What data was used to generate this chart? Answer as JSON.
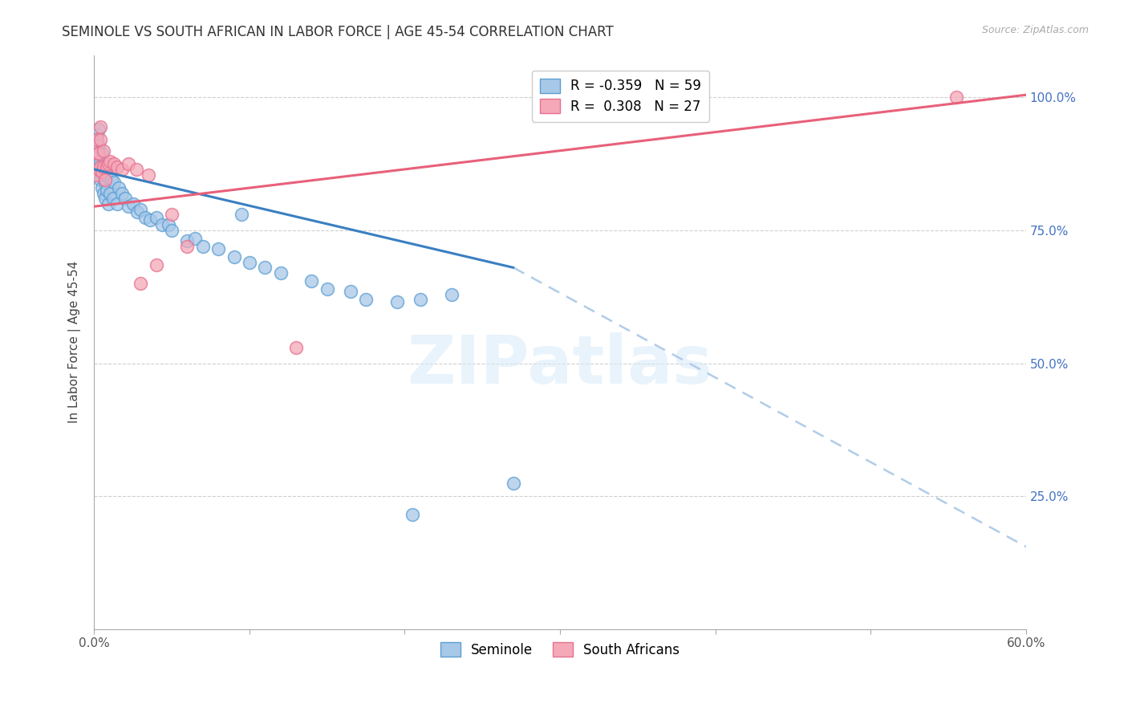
{
  "title": "SEMINOLE VS SOUTH AFRICAN IN LABOR FORCE | AGE 45-54 CORRELATION CHART",
  "source": "Source: ZipAtlas.com",
  "ylabel": "In Labor Force | Age 45-54",
  "xlim": [
    0.0,
    0.6
  ],
  "ylim": [
    0.0,
    1.08
  ],
  "legend_label1": "Seminole",
  "legend_label2": "South Africans",
  "R1": "-0.359",
  "N1": "59",
  "R2": "0.308",
  "N2": "27",
  "color_blue": "#a8c8e8",
  "color_pink": "#f4a8b8",
  "color_blue_edge": "#5a9fd4",
  "color_pink_edge": "#e87090",
  "color_blue_line": "#3a7fc1",
  "color_pink_line": "#e8607a",
  "color_dashed_line": "#b0cce8",
  "right_tick_color": "#4472c4",
  "blue_line_x0": 0.0,
  "blue_line_y0": 0.865,
  "blue_line_x1": 0.27,
  "blue_line_y1": 0.68,
  "dashed_line_x0": 0.27,
  "dashed_line_y0": 0.68,
  "dashed_line_x1": 0.6,
  "dashed_line_y1": 0.155,
  "pink_line_x0": 0.0,
  "pink_line_y0": 0.795,
  "pink_line_x1": 0.6,
  "pink_line_y1": 1.005,
  "seminole_points": [
    [
      0.001,
      0.87
    ],
    [
      0.001,
      0.875
    ],
    [
      0.002,
      0.86
    ],
    [
      0.002,
      0.89
    ],
    [
      0.002,
      0.93
    ],
    [
      0.003,
      0.855
    ],
    [
      0.003,
      0.88
    ],
    [
      0.003,
      0.91
    ],
    [
      0.003,
      0.94
    ],
    [
      0.004,
      0.845
    ],
    [
      0.004,
      0.87
    ],
    [
      0.004,
      0.88
    ],
    [
      0.005,
      0.83
    ],
    [
      0.005,
      0.865
    ],
    [
      0.005,
      0.895
    ],
    [
      0.006,
      0.82
    ],
    [
      0.006,
      0.855
    ],
    [
      0.006,
      0.875
    ],
    [
      0.007,
      0.81
    ],
    [
      0.007,
      0.84
    ],
    [
      0.008,
      0.825
    ],
    [
      0.008,
      0.855
    ],
    [
      0.009,
      0.8
    ],
    [
      0.01,
      0.82
    ],
    [
      0.011,
      0.845
    ],
    [
      0.012,
      0.81
    ],
    [
      0.013,
      0.84
    ],
    [
      0.015,
      0.8
    ],
    [
      0.016,
      0.83
    ],
    [
      0.018,
      0.82
    ],
    [
      0.02,
      0.81
    ],
    [
      0.022,
      0.795
    ],
    [
      0.025,
      0.8
    ],
    [
      0.028,
      0.785
    ],
    [
      0.03,
      0.79
    ],
    [
      0.033,
      0.775
    ],
    [
      0.036,
      0.77
    ],
    [
      0.04,
      0.775
    ],
    [
      0.044,
      0.76
    ],
    [
      0.048,
      0.76
    ],
    [
      0.05,
      0.75
    ],
    [
      0.06,
      0.73
    ],
    [
      0.065,
      0.735
    ],
    [
      0.07,
      0.72
    ],
    [
      0.08,
      0.715
    ],
    [
      0.09,
      0.7
    ],
    [
      0.1,
      0.69
    ],
    [
      0.11,
      0.68
    ],
    [
      0.12,
      0.67
    ],
    [
      0.14,
      0.655
    ],
    [
      0.15,
      0.64
    ],
    [
      0.165,
      0.635
    ],
    [
      0.175,
      0.62
    ],
    [
      0.195,
      0.615
    ],
    [
      0.21,
      0.62
    ],
    [
      0.23,
      0.63
    ],
    [
      0.095,
      0.78
    ],
    [
      0.27,
      0.275
    ],
    [
      0.205,
      0.215
    ]
  ],
  "southafrican_points": [
    [
      0.001,
      0.855
    ],
    [
      0.002,
      0.895
    ],
    [
      0.002,
      0.92
    ],
    [
      0.003,
      0.865
    ],
    [
      0.003,
      0.895
    ],
    [
      0.004,
      0.87
    ],
    [
      0.004,
      0.92
    ],
    [
      0.004,
      0.945
    ],
    [
      0.005,
      0.86
    ],
    [
      0.006,
      0.87
    ],
    [
      0.006,
      0.9
    ],
    [
      0.007,
      0.845
    ],
    [
      0.008,
      0.87
    ],
    [
      0.009,
      0.875
    ],
    [
      0.01,
      0.88
    ],
    [
      0.013,
      0.875
    ],
    [
      0.015,
      0.87
    ],
    [
      0.018,
      0.865
    ],
    [
      0.022,
      0.875
    ],
    [
      0.027,
      0.865
    ],
    [
      0.03,
      0.65
    ],
    [
      0.035,
      0.855
    ],
    [
      0.04,
      0.685
    ],
    [
      0.05,
      0.78
    ],
    [
      0.06,
      0.72
    ],
    [
      0.13,
      0.53
    ],
    [
      0.555,
      1.0
    ]
  ],
  "grid_color": "#d0d0d0",
  "title_fontsize": 12,
  "axis_label_fontsize": 11,
  "tick_fontsize": 11
}
